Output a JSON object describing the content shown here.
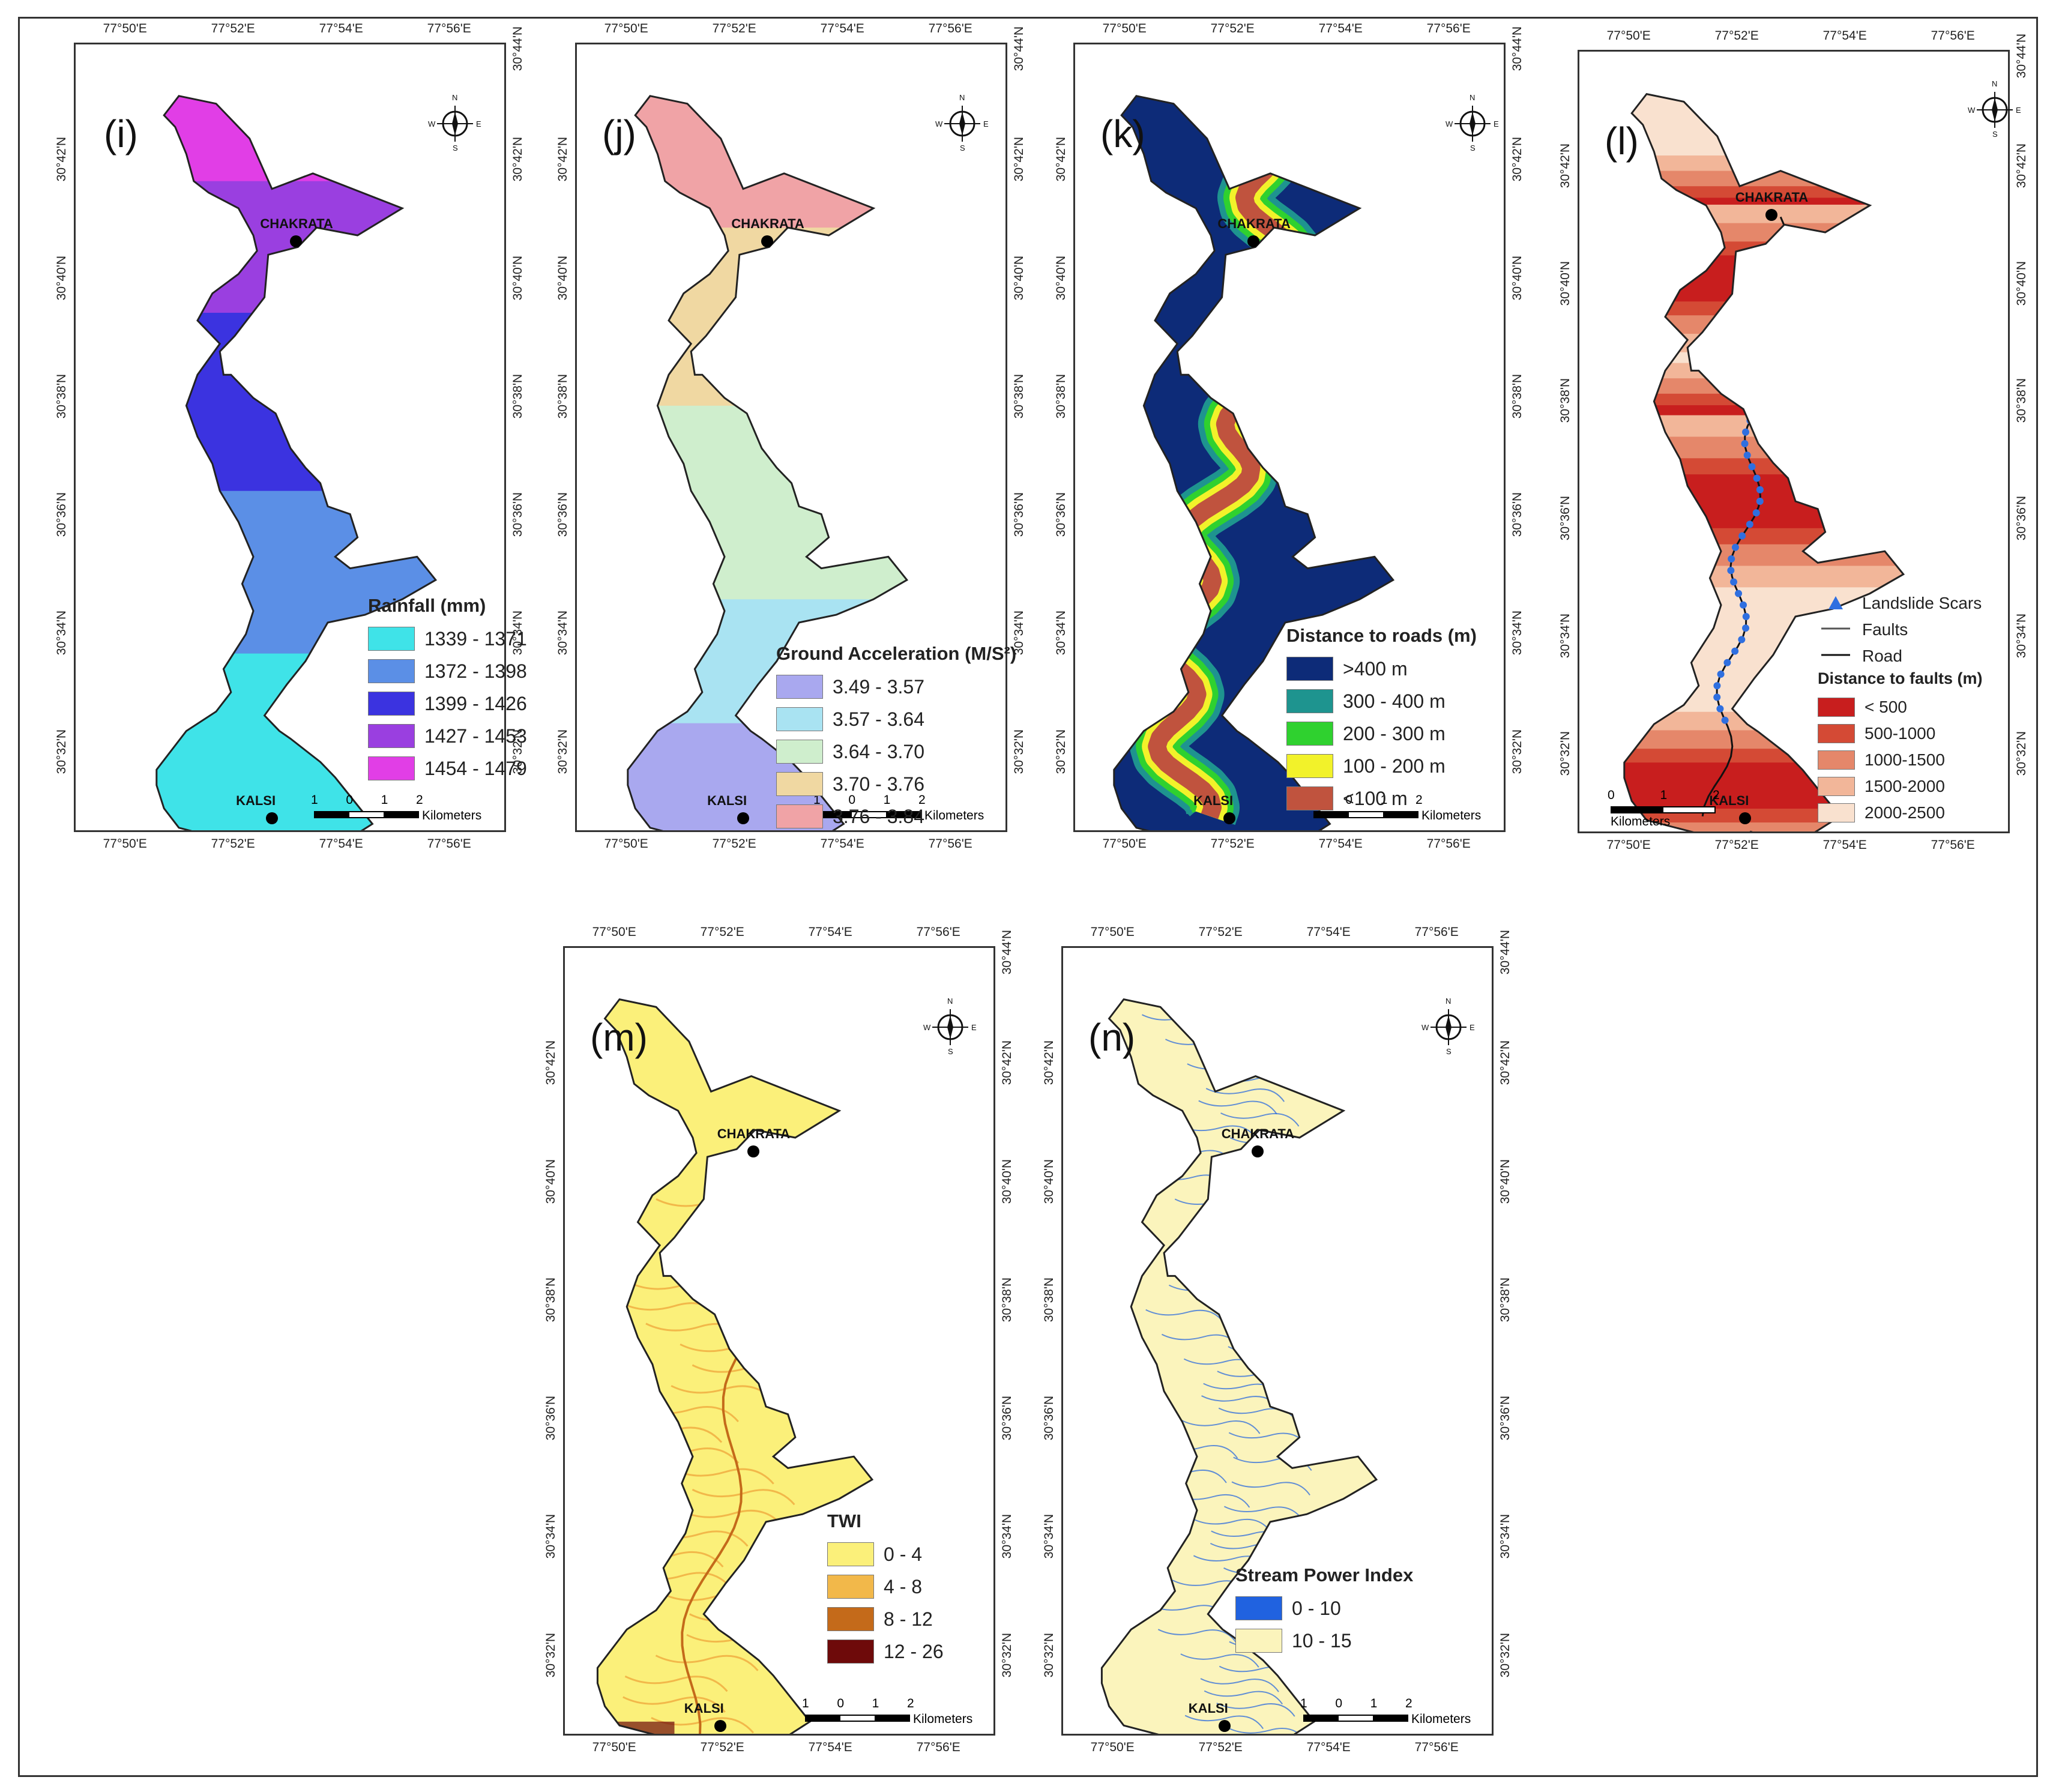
{
  "coordinates": {
    "lon": [
      "77°50'E",
      "77°52'E",
      "77°54'E",
      "77°56'E"
    ],
    "lat_top_to_bottom": [
      "30°44'N",
      "30°42'N",
      "30°40'N",
      "30°38'N",
      "30°36'N",
      "30°34'N",
      "30°32'N"
    ]
  },
  "towns": {
    "north": "CHAKRATA",
    "south": "KALSI"
  },
  "compass": {
    "n": "N",
    "s": "S",
    "e": "E",
    "w": "W"
  },
  "scalebar": {
    "labels": [
      "1",
      "0",
      "1",
      "2"
    ],
    "unit": "Kilometers"
  },
  "scalebar_l": {
    "labels": [
      "0",
      "1",
      "2"
    ],
    "unit": "Kilometers"
  },
  "panels": {
    "i": {
      "label": "(i)",
      "legend_title": "Rainfall (mm)",
      "classes": [
        {
          "label": "1339  - 1371",
          "color": "#3fe3e8"
        },
        {
          "label": "1372  - 1398",
          "color": "#5b8fe6"
        },
        {
          "label": "1399  - 1426",
          "color": "#3b33e0"
        },
        {
          "label": "1427  - 1453",
          "color": "#9a3fe0"
        },
        {
          "label": "1454  - 1479",
          "color": "#e13ee6"
        }
      ]
    },
    "j": {
      "label": "(j)",
      "legend_title": "Ground Acceleration (M/S²)",
      "classes": [
        {
          "label": "3.49 - 3.57",
          "color": "#a9a8ef"
        },
        {
          "label": "3.57 - 3.64",
          "color": "#a9e3f2"
        },
        {
          "label": "3.64 - 3.70",
          "color": "#cfeecd"
        },
        {
          "label": "3.70 - 3.76",
          "color": "#f0d8a2"
        },
        {
          "label": "3.76 - 3.84",
          "color": "#f0a3a6"
        }
      ]
    },
    "k": {
      "label": "(k)",
      "legend_title": "Distance to roads (m)",
      "classes": [
        {
          "label": ">400 m",
          "color": "#0d2b78"
        },
        {
          "label": "300 - 400 m",
          "color": "#1e948f"
        },
        {
          "label": "200 - 300 m",
          "color": "#2fd12f"
        },
        {
          "label": "100 - 200 m",
          "color": "#f2f22a"
        },
        {
          "label": "<100 m",
          "color": "#c0533e"
        }
      ]
    },
    "l": {
      "label": "(l)",
      "symbols": [
        "Landslide Scars",
        "Faults",
        "Road"
      ],
      "legend_title": "Distance to faults (m)",
      "classes": [
        {
          "label": "< 500",
          "color": "#c81e1e"
        },
        {
          "label": "500-1000",
          "color": "#d44a35"
        },
        {
          "label": "1000-1500",
          "color": "#e5876a"
        },
        {
          "label": "1500-2000",
          "color": "#f2b699"
        },
        {
          "label": "2000-2500",
          "color": "#f9e1cf"
        }
      ]
    },
    "m": {
      "label": "(m)",
      "legend_title": "TWI",
      "classes": [
        {
          "label": "0 - 4",
          "color": "#fbf07a"
        },
        {
          "label": "4 - 8",
          "color": "#f2b84a"
        },
        {
          "label": "8 - 12",
          "color": "#c46a1a"
        },
        {
          "label": "12 - 26",
          "color": "#6e0a0a"
        }
      ]
    },
    "n": {
      "label": "(n)",
      "legend_title": "Stream Power Index",
      "classes": [
        {
          "label": "0 - 10",
          "color": "#2062e0"
        },
        {
          "label": "10 - 15",
          "color": "#fbf4bc"
        }
      ]
    }
  }
}
